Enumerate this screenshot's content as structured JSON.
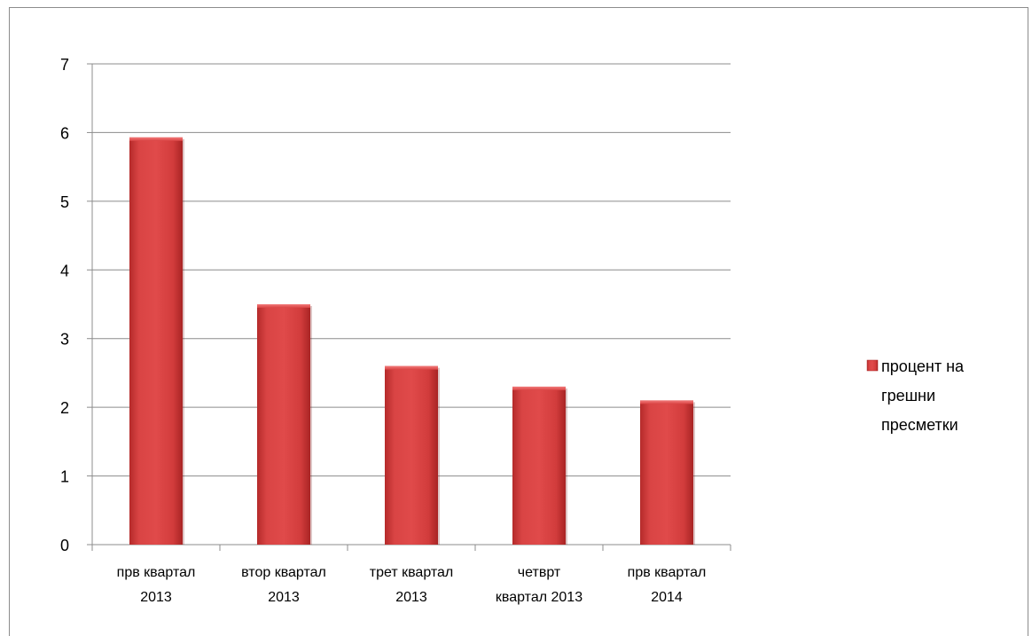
{
  "chart_data": {
    "type": "bar",
    "categories": [
      [
        "прв квартал",
        "2013"
      ],
      [
        "втор квартал",
        "2013"
      ],
      [
        "трет квартал",
        "2013"
      ],
      [
        "четврт",
        "квартал 2013"
      ],
      [
        "прв квартал",
        "2014"
      ]
    ],
    "series": [
      {
        "name": "процент на грешни пресметки",
        "values": [
          5.93,
          3.5,
          2.6,
          2.3,
          2.1
        ],
        "color": "#d63c3c"
      }
    ],
    "ylim": [
      0,
      7
    ],
    "yticks": [
      0,
      1,
      2,
      3,
      4,
      5,
      6,
      7
    ],
    "grid": true,
    "legend": {
      "position": "right",
      "lines": [
        "процент на",
        "грешни",
        "пресметки"
      ]
    }
  }
}
